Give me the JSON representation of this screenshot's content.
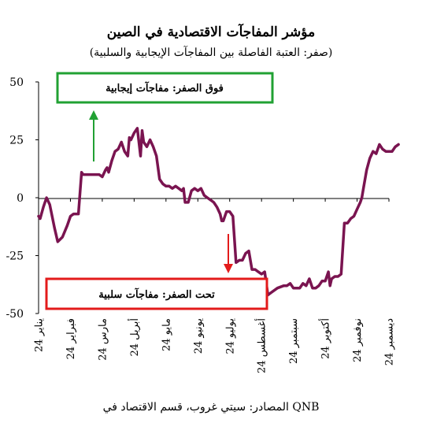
{
  "chart_data": {
    "type": "line",
    "title": "مؤشر المفاجآت الاقتصادية في الصين",
    "subtitle": "(صفر: العتبة الفاصلة بين المفاجآت الإيجابية والسلبية)",
    "source": "المصادر: سيتي غروب، قسم الاقتصاد في QNB",
    "ylim": [
      -50,
      50
    ],
    "yticks": [
      50,
      25,
      0,
      -25,
      -50
    ],
    "ytick_labels": [
      "50",
      "25",
      "0",
      "-25",
      "-50"
    ],
    "grid": false,
    "categories": [
      "يناير 24",
      "فبراير 24",
      "مارس 24",
      "أبريل 24",
      "مايو 24",
      "يونيو 24",
      "يوليو 24",
      "أغسطس 24",
      "سبتمبر 24",
      "أكتوبر 24",
      "نوفمبر 24",
      "ديسمبر 24"
    ],
    "annotations": {
      "above": "فوق الصفر: مفاجآت إيجابية",
      "below": "تحت الصفر: مفاجآت سلبية",
      "above_color": "#21a133",
      "below_color": "#e31b1b"
    },
    "series": [
      {
        "color": "#7a1450",
        "x": [
          0,
          0.05,
          0.15,
          0.25,
          0.35,
          0.5,
          0.6,
          0.75,
          0.9,
          1.0,
          1.1,
          1.25,
          1.35,
          1.4,
          1.5,
          1.6,
          1.7,
          1.8,
          1.9,
          2.0,
          2.1,
          2.15,
          2.2,
          2.3,
          2.4,
          2.5,
          2.6,
          2.7,
          2.8,
          2.85,
          2.9,
          3.0,
          3.1,
          3.2,
          3.25,
          3.3,
          3.4,
          3.5,
          3.6,
          3.7,
          3.8,
          3.9,
          4.0,
          4.1,
          4.2,
          4.3,
          4.4,
          4.5,
          4.55,
          4.6,
          4.7,
          4.8,
          4.9,
          5.0,
          5.1,
          5.2,
          5.3,
          5.4,
          5.5,
          5.6,
          5.7,
          5.75,
          5.8,
          5.9,
          6.0,
          6.1,
          6.2,
          6.3,
          6.4,
          6.5,
          6.6,
          6.7,
          6.8,
          6.9,
          7.0,
          7.1,
          7.2,
          7.3,
          7.5,
          7.7,
          7.8,
          7.9,
          8.0,
          8.1,
          8.2,
          8.3,
          8.4,
          8.5,
          8.6,
          8.7,
          8.8,
          8.9,
          9.0,
          9.1,
          9.15,
          9.2,
          9.3,
          9.4,
          9.5,
          9.6,
          9.7,
          9.8,
          9.9,
          10.0,
          10.1,
          10.15,
          10.2,
          10.3,
          10.4,
          10.5,
          10.6,
          10.7,
          10.8,
          10.9,
          11.0,
          11.1,
          11.2,
          11.3
        ],
        "values": [
          -8,
          -9,
          -4,
          0,
          -3,
          -13,
          -19,
          -17,
          -12,
          -8,
          -7,
          -7,
          11,
          10,
          10,
          10,
          10,
          10,
          10,
          9,
          12,
          13,
          11,
          16,
          20,
          21,
          24,
          20,
          18,
          26,
          25,
          28,
          30,
          18,
          29,
          24,
          22,
          25,
          22,
          18,
          8,
          6,
          5,
          5,
          4,
          5,
          4,
          3,
          4,
          -2,
          -2,
          3,
          4,
          3,
          4,
          1,
          0,
          -1,
          -2,
          -4,
          -7,
          -10,
          -10,
          -6,
          -6,
          -8,
          -28,
          -27,
          -27,
          -24,
          -23,
          -31,
          -31,
          -32,
          -33,
          -32,
          -42,
          -41,
          -39,
          -38,
          -38,
          -37,
          -39,
          -39,
          -39,
          -37,
          -38,
          -35,
          -39,
          -39,
          -38,
          -36,
          -36,
          -32,
          -38,
          -35,
          -34,
          -34,
          -33,
          -11,
          -11,
          -9,
          -8,
          -5,
          -2,
          0,
          4,
          12,
          17,
          20,
          19,
          23,
          21,
          20,
          20,
          20,
          22,
          23
        ]
      }
    ]
  }
}
